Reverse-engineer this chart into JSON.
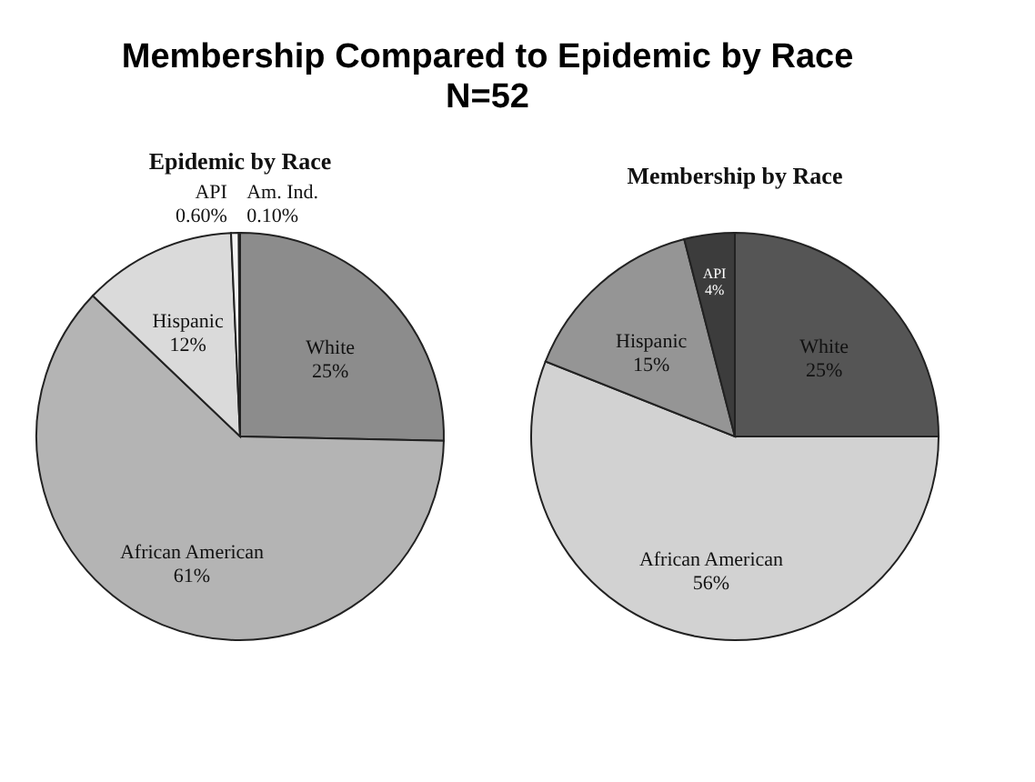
{
  "chart_data": [
    {
      "type": "other",
      "title": "Membership Compared to Epidemic by Race",
      "subtitle": "N=52"
    },
    {
      "type": "pie",
      "title": "Epidemic by Race",
      "categories": [
        "White",
        "African American",
        "Hispanic",
        "API",
        "Am. Ind."
      ],
      "values": [
        25,
        61,
        12,
        0.6,
        0.1
      ],
      "value_labels": [
        "25%",
        "61%",
        "12%",
        "0.60%",
        "0.10%"
      ],
      "colors": [
        "#8c8c8c",
        "#b4b4b4",
        "#dadada",
        "#f4f4f4",
        "#ffffff"
      ]
    },
    {
      "type": "pie",
      "title": "Membership by Race",
      "categories": [
        "White",
        "African American",
        "Hispanic",
        "API"
      ],
      "values": [
        25,
        56,
        15,
        4
      ],
      "value_labels": [
        "25%",
        "56%",
        "15%",
        "4%"
      ],
      "colors": [
        "#555555",
        "#d2d2d2",
        "#959595",
        "#3c3c3c"
      ]
    }
  ]
}
